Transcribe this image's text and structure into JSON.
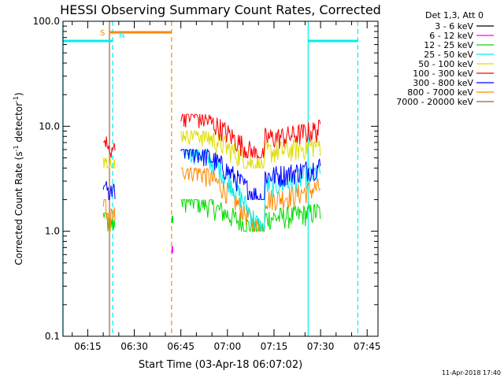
{
  "chart_data": {
    "type": "line",
    "title": "HESSI Observing Summary Count Rates, Corrected",
    "xlabel": "Start Time (03-Apr-18 06:07:02)",
    "ylabel_main": "Corrected Count Rate (s",
    "ylabel_sup1": "-1",
    "ylabel_mid": " detector",
    "ylabel_sup2": "-1",
    "ylabel_end": ")",
    "y_scale": "log",
    "ylim": [
      0.1,
      100.0
    ],
    "xlim_minutes": [
      "06:07:02",
      "07:48:30"
    ],
    "x_ticks": [
      "06:15",
      "06:30",
      "06:45",
      "07:00",
      "07:15",
      "07:30",
      "07:45"
    ],
    "x_tick_minutes": [
      375,
      390,
      405,
      420,
      435,
      450,
      465
    ],
    "y_ticks": [
      "0.1",
      "1.0",
      "10.0",
      "100.0"
    ],
    "y_tick_values": [
      0.1,
      1,
      10,
      100
    ],
    "legend_header": "Det 1,3, Att 0",
    "legend_position": "right",
    "series": [
      {
        "name": "3 - 6 keV",
        "color": "#000000"
      },
      {
        "name": "6 - 12 keV",
        "color": "#ff00ff"
      },
      {
        "name": "12 - 25 keV",
        "color": "#00dd00"
      },
      {
        "name": "25 - 50 keV",
        "color": "#00eeee"
      },
      {
        "name": "50 - 100 keV",
        "color": "#dddd00"
      },
      {
        "name": "100 - 300 keV",
        "color": "#ff0000"
      },
      {
        "name": "300 - 800 keV",
        "color": "#0000ff"
      },
      {
        "name": "800 - 7000 keV",
        "color": "#ff8800"
      },
      {
        "name": "7000 - 20000 keV",
        "color": "#996633"
      }
    ],
    "flags": [
      {
        "label": "S",
        "color": "#ff8800",
        "start": "06:22",
        "end": "06:42"
      },
      {
        "label": "N",
        "color": "#00eeee",
        "start": "06:23",
        "end": null
      }
    ],
    "night_bars": [
      {
        "color": "#00eeee",
        "start": "06:07",
        "end": "06:23",
        "value": 65
      },
      {
        "color": "#00eeee",
        "start": "07:26",
        "end": "07:42",
        "value": 65
      }
    ],
    "vertical_markers": [
      {
        "color": "#00eeee",
        "style": "solid",
        "time": "06:07"
      },
      {
        "color": "#996633",
        "style": "solid",
        "time": "06:22"
      },
      {
        "color": "#00eeee",
        "style": "dashed",
        "time": "06:23"
      },
      {
        "color": "#ff8800",
        "style": "dashed",
        "time": "06:42"
      },
      {
        "color": "#00eeee",
        "style": "solid",
        "time": "07:26"
      },
      {
        "color": "#00eeee",
        "style": "dashed",
        "time": "07:42"
      }
    ],
    "data_segments": [
      {
        "start": "06:20",
        "end": "06:24",
        "levels": {
          "100 - 300 keV": [
            5,
            8
          ],
          "50 - 100 keV": [
            4,
            5
          ],
          "300 - 800 keV": [
            2,
            3
          ],
          "800 - 7000 keV": [
            1,
            2
          ],
          "12 - 25 keV": [
            1,
            1.5
          ]
        }
      },
      {
        "start": "06:45",
        "end": "07:30",
        "levels": {
          "100 - 300 keV": [
            5,
            13
          ],
          "50 - 100 keV": [
            4,
            9
          ],
          "300 - 800 keV": [
            2,
            6
          ],
          "800 - 7000 keV": [
            1,
            4
          ],
          "12 - 25 keV": [
            1,
            2
          ],
          "25 - 50 keV": [
            1,
            6
          ]
        }
      }
    ]
  },
  "footer": {
    "date_stamp": "11-Apr-2018 17:40"
  }
}
